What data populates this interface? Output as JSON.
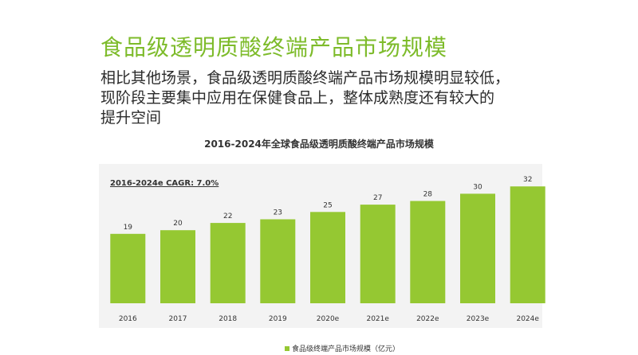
{
  "slide": {
    "title": "食品级透明质酸终端产品市场规模",
    "subtitle_lines": [
      "相比其他场景，食品级透明质酸终端产品市场规模明显较低，",
      "现阶段主要集中应用在保健食品上，整体成熟度还有较大的",
      "提升空间"
    ]
  },
  "colors": {
    "title": "#7dbb2a",
    "bar": "#95c832",
    "plot_background": "#f3f3f3"
  },
  "chart_data": {
    "type": "bar",
    "title": "2016-2024年全球食品级透明质酸终端产品市场规模",
    "annotation": "2016-2024e CAGR: 7.0%",
    "categories": [
      "2016",
      "2017",
      "2018",
      "2019",
      "2020e",
      "2021e",
      "2022e",
      "2023e",
      "2024e"
    ],
    "series": [
      {
        "name": "食品级终端产品市场规模（亿元）",
        "values": [
          19,
          20,
          22,
          23,
          25,
          27,
          28,
          30,
          32
        ]
      }
    ],
    "ylim": [
      0,
      34
    ],
    "grid": false,
    "legend_position": "bottom"
  }
}
